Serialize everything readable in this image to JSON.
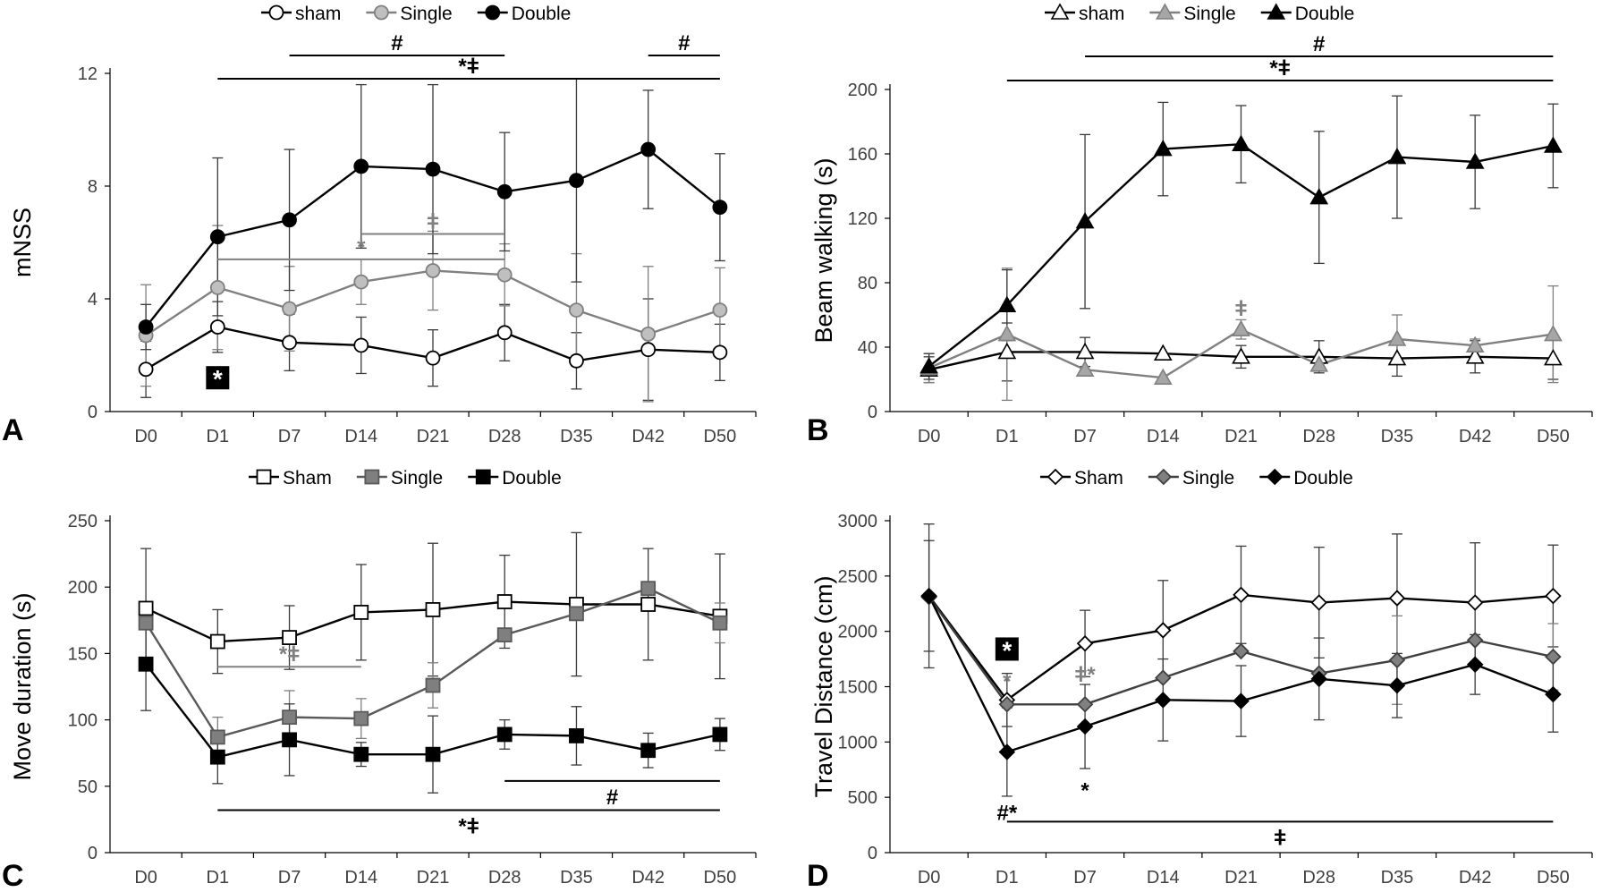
{
  "chart_data": [
    {
      "panel_label": "A",
      "type": "line",
      "ylabel": "mNSS",
      "xlabel": "",
      "categories": [
        "D0",
        "D1",
        "D7",
        "D14",
        "D21",
        "D28",
        "D35",
        "D42",
        "D50"
      ],
      "ylim": [
        0,
        12
      ],
      "yticks": [
        "0",
        "4",
        "8",
        "12"
      ],
      "marker": "circle",
      "series": [
        {
          "name": "sham",
          "color": "#000000",
          "fill": "#ffffff",
          "values": [
            1.5,
            3.0,
            2.45,
            2.35,
            1.9,
            2.8,
            1.8,
            2.2,
            2.1
          ],
          "errors": [
            1.0,
            0.9,
            1.0,
            1.0,
            1.0,
            1.0,
            1.0,
            1.8,
            1.0
          ]
        },
        {
          "name": "Single",
          "color": "#808080",
          "fill": "#bfbfbf",
          "values": [
            2.7,
            4.4,
            3.65,
            4.6,
            5.0,
            4.85,
            3.6,
            2.75,
            3.6
          ],
          "errors": [
            1.8,
            2.2,
            1.5,
            0.8,
            1.4,
            1.1,
            2.0,
            2.4,
            1.5
          ]
        },
        {
          "name": "Double",
          "color": "#000000",
          "fill": "#000000",
          "values": [
            3.0,
            6.2,
            6.8,
            8.7,
            8.6,
            7.8,
            8.2,
            9.3,
            7.25
          ],
          "errors": [
            0.8,
            2.8,
            2.5,
            2.9,
            3.0,
            2.1,
            3.6,
            2.1,
            1.9
          ]
        }
      ],
      "annotations": [
        {
          "text": "#",
          "from": 2,
          "to": 5,
          "row": 0,
          "color": "#000000"
        },
        {
          "text": "#",
          "from": 7,
          "to": 8,
          "row": 0,
          "color": "#000000"
        },
        {
          "text": "*ǂ",
          "from": 1,
          "to": 8,
          "row": 1,
          "color": "#000000"
        },
        {
          "text": "ǂ",
          "from": 3,
          "to": 5,
          "y": 6.3,
          "color": "#808080"
        },
        {
          "text": "*",
          "from": 1,
          "to": 5,
          "y": 5.4,
          "color": "#808080"
        }
      ],
      "boxed_marks": [
        {
          "text": "*",
          "at": 1,
          "y": 1.2
        }
      ]
    },
    {
      "panel_label": "B",
      "type": "line",
      "ylabel": "Beam walking (s)",
      "xlabel": "",
      "categories": [
        "D0",
        "D1",
        "D7",
        "D14",
        "D21",
        "D28",
        "D35",
        "D42",
        "D50"
      ],
      "ylim": [
        0,
        200
      ],
      "yticks": [
        "0",
        "40",
        "80",
        "120",
        "160",
        "200"
      ],
      "marker": "triangle",
      "series": [
        {
          "name": "sham",
          "color": "#000000",
          "fill": "#ffffff",
          "values": [
            26,
            37,
            37,
            36,
            34,
            34,
            33,
            34,
            33
          ],
          "errors": [
            8,
            18,
            9,
            0,
            7,
            10,
            11,
            10,
            13
          ]
        },
        {
          "name": "Single",
          "color": "#808080",
          "fill": "#a6a6a6",
          "values": [
            27,
            48,
            26,
            21,
            51,
            29,
            45,
            41,
            48
          ],
          "errors": [
            9,
            41,
            0,
            0,
            6,
            0,
            15,
            4,
            30
          ]
        },
        {
          "name": "Double",
          "color": "#000000",
          "fill": "#000000",
          "values": [
            28,
            66,
            118,
            163,
            166,
            133,
            158,
            155,
            165
          ],
          "errors": [
            8,
            22,
            54,
            29,
            24,
            41,
            38,
            29,
            26
          ]
        }
      ],
      "annotations": [
        {
          "text": "#",
          "from": 2,
          "to": 8,
          "row": 0,
          "color": "#000000"
        },
        {
          "text": "*ǂ",
          "from": 1,
          "to": 8,
          "row": 1,
          "color": "#000000"
        },
        {
          "text": "ǂ",
          "at": 4,
          "y": 64,
          "color": "#808080"
        }
      ]
    },
    {
      "panel_label": "C",
      "type": "line",
      "ylabel": "Move duration  (s)",
      "xlabel": "",
      "categories": [
        "D0",
        "D1",
        "D7",
        "D14",
        "D21",
        "D28",
        "D35",
        "D42",
        "D50"
      ],
      "ylim": [
        0,
        250
      ],
      "yticks": [
        "0",
        "50",
        "100",
        "150",
        "200",
        "250"
      ],
      "marker": "square",
      "series": [
        {
          "name": "Sham",
          "color": "#000000",
          "fill": "#ffffff",
          "values": [
            184,
            159,
            162,
            181,
            183,
            189,
            187,
            187,
            178
          ],
          "errors": [
            45,
            24,
            24,
            36,
            50,
            35,
            54,
            42,
            47
          ]
        },
        {
          "name": "Single",
          "color": "#595959",
          "fill": "#7f7f7f",
          "values": [
            173,
            87,
            102,
            101,
            126,
            164,
            180,
            199,
            173
          ],
          "errors": [
            0,
            15,
            20,
            15,
            17,
            0,
            0,
            0,
            15
          ]
        },
        {
          "name": "Double",
          "color": "#000000",
          "fill": "#000000",
          "values": [
            142,
            72,
            85,
            74,
            74,
            89,
            88,
            77,
            89
          ],
          "errors": [
            35,
            20,
            27,
            9,
            29,
            11,
            22,
            13,
            12
          ]
        }
      ],
      "annotations": [
        {
          "text": "*ǂ",
          "from": 1,
          "to": 3,
          "y": 140,
          "color": "#808080"
        },
        {
          "text": "#",
          "from": 5,
          "to": 8,
          "y": 54,
          "color": "#000000",
          "label_below": true
        },
        {
          "text": "*ǂ",
          "from": 1,
          "to": 8,
          "y": 32,
          "color": "#000000",
          "label_below": true
        }
      ]
    },
    {
      "panel_label": "D",
      "type": "line",
      "ylabel": "Travel Distance  (cm)",
      "xlabel": "",
      "categories": [
        "D0",
        "D1",
        "D7",
        "D14",
        "D21",
        "D28",
        "D35",
        "D42",
        "D50"
      ],
      "ylim": [
        0,
        3000
      ],
      "yticks": [
        "0",
        "500",
        "1000",
        "1500",
        "2000",
        "2500",
        "3000"
      ],
      "marker": "diamond",
      "series": [
        {
          "name": "Sham",
          "color": "#000000",
          "fill": "#ffffff",
          "values": [
            2320,
            1380,
            1890,
            2010,
            2330,
            2260,
            2300,
            2260,
            2320
          ],
          "errors": [
            650,
            240,
            300,
            450,
            440,
            500,
            580,
            540,
            460
          ]
        },
        {
          "name": "Single",
          "color": "#404040",
          "fill": "#808080",
          "values": [
            2310,
            1340,
            1340,
            1580,
            1820,
            1620,
            1740,
            1920,
            1770
          ],
          "errors": [
            0,
            0,
            0,
            0,
            0,
            0,
            400,
            0,
            300
          ]
        },
        {
          "name": "Double",
          "color": "#000000",
          "fill": "#000000",
          "values": [
            2320,
            910,
            1140,
            1380,
            1370,
            1570,
            1510,
            1700,
            1430
          ],
          "errors": [
            500,
            400,
            380,
            370,
            320,
            370,
            290,
            270,
            340
          ]
        }
      ],
      "annotations": [
        {
          "text": "ǂ",
          "from": 1,
          "to": 8,
          "y": 280,
          "color": "#000000",
          "label_below": true
        },
        {
          "text": "#*",
          "at": 1,
          "y": 360,
          "color": "#000000"
        },
        {
          "text": "*",
          "at": 2,
          "y": 560,
          "color": "#000000"
        },
        {
          "text": "*",
          "at": 1,
          "y": 1550,
          "color": "#808080"
        },
        {
          "text": "ǂ*",
          "at": 2,
          "y": 1610,
          "color": "#808080"
        }
      ],
      "boxed_marks": [
        {
          "text": "*",
          "at": 1,
          "y": 1840
        }
      ]
    }
  ]
}
